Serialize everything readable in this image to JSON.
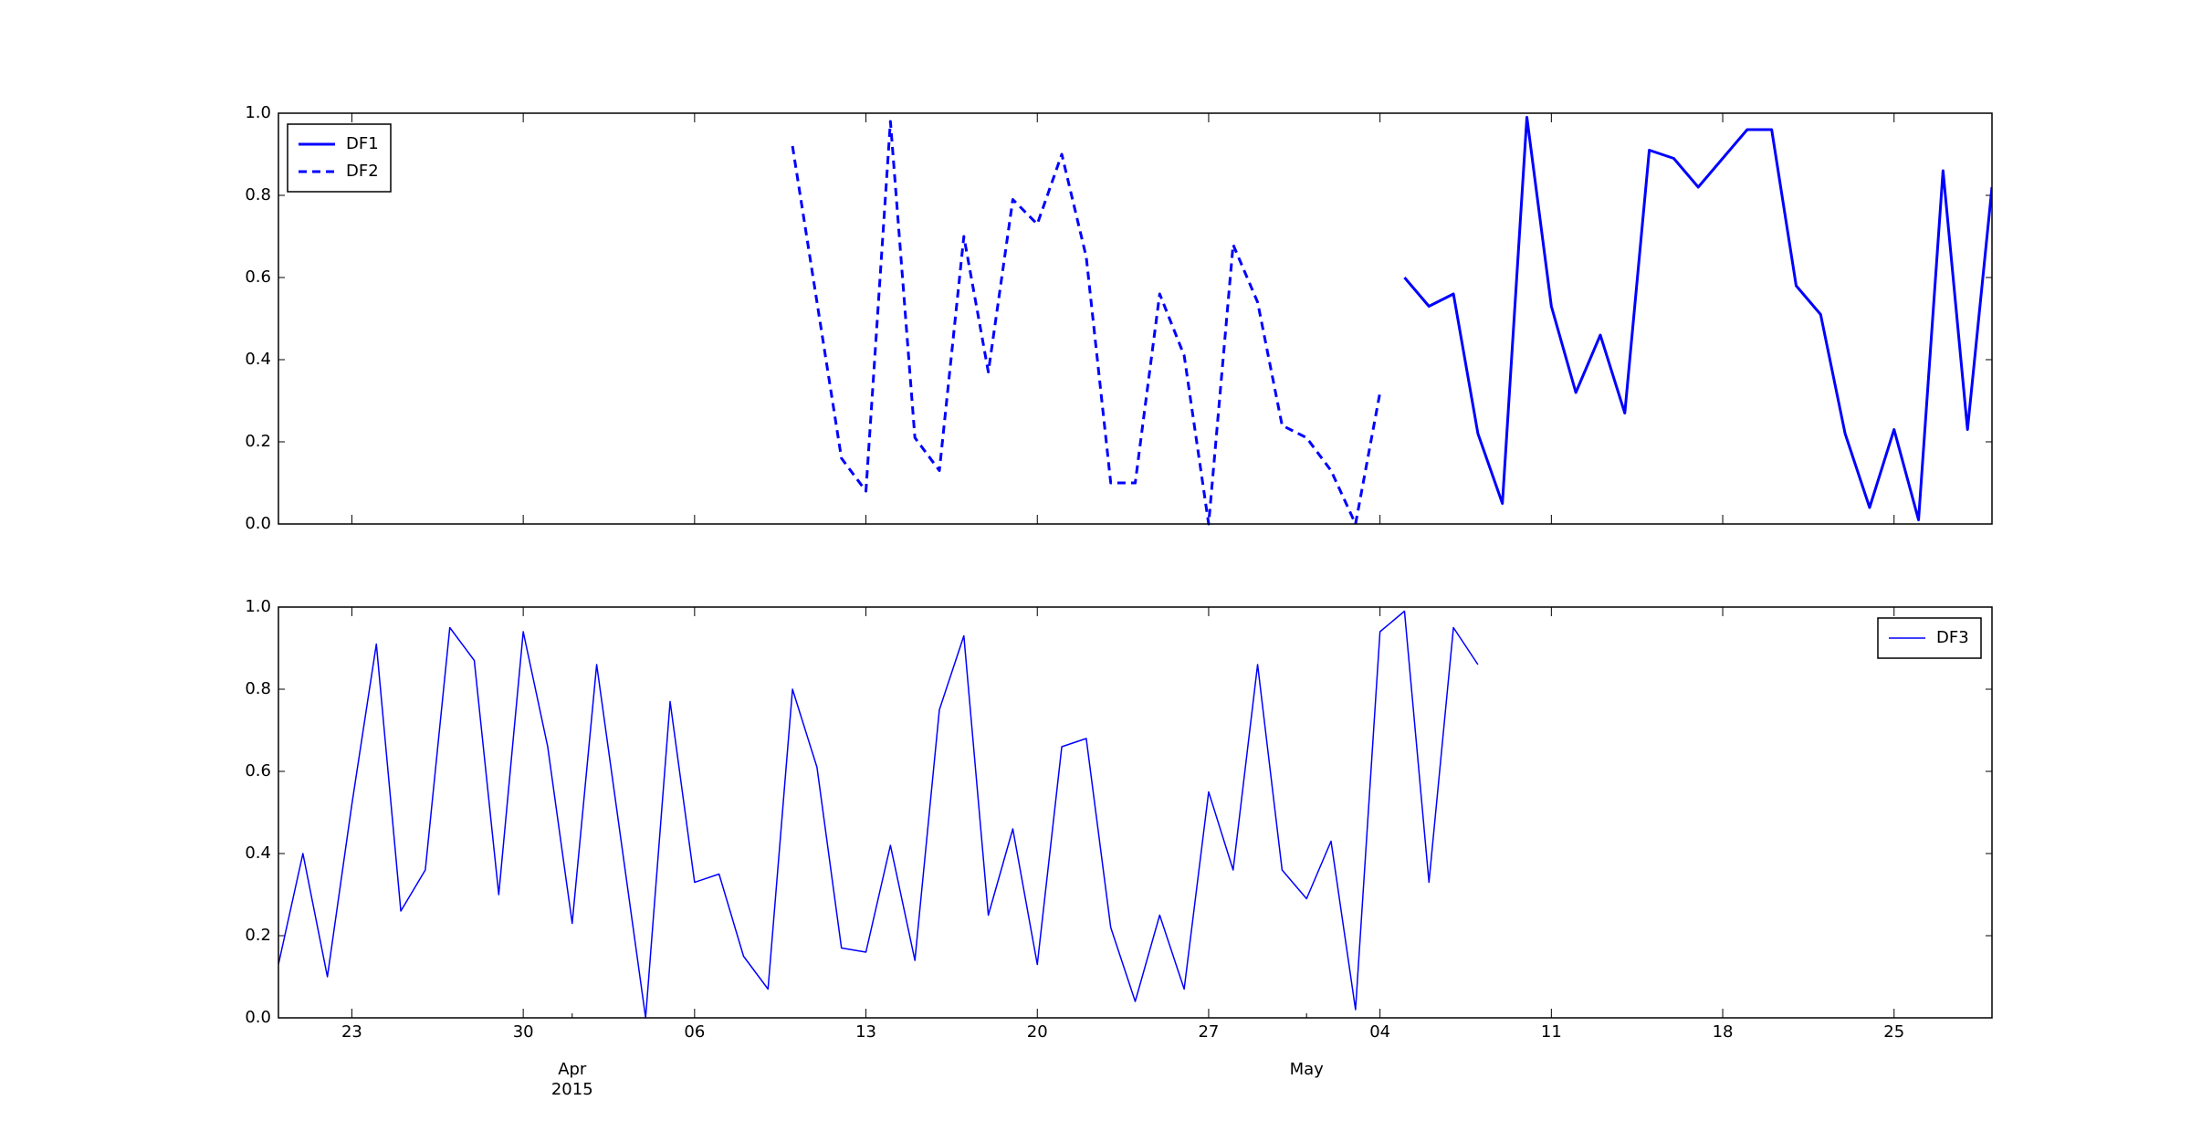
{
  "chart_data": [
    {
      "type": "line",
      "xlim": [
        "2015-03-20",
        "2015-05-29"
      ],
      "ylim": [
        0,
        1
      ],
      "xticks": [
        "2015-03-23",
        "2015-03-30",
        "2015-04-06",
        "2015-04-13",
        "2015-04-20",
        "2015-04-27",
        "2015-05-04",
        "2015-05-11",
        "2015-05-18",
        "2015-05-25"
      ],
      "yticks": [
        {
          "value": 0,
          "label": "0.0"
        },
        0.2,
        0.4,
        0.6,
        0.8,
        {
          "value": 1,
          "label": "1.0"
        }
      ],
      "legend": "upper left",
      "series": [
        {
          "name": "DF1",
          "color": "#0000ff",
          "linestyle": "solid",
          "linewidth": 2,
          "x": [
            "2015-05-05",
            "2015-05-06",
            "2015-05-07",
            "2015-05-08",
            "2015-05-09",
            "2015-05-10",
            "2015-05-11",
            "2015-05-12",
            "2015-05-13",
            "2015-05-14",
            "2015-05-15",
            "2015-05-16",
            "2015-05-17",
            "2015-05-18",
            "2015-05-19",
            "2015-05-20",
            "2015-05-21",
            "2015-05-22",
            "2015-05-23",
            "2015-05-24",
            "2015-05-25",
            "2015-05-26",
            "2015-05-27",
            "2015-05-28",
            "2015-05-29"
          ],
          "values": [
            0.6,
            0.53,
            0.56,
            0.22,
            0.05,
            0.99,
            0.53,
            0.32,
            0.46,
            0.27,
            0.91,
            0.89,
            0.82,
            0.89,
            0.96,
            0.96,
            0.58,
            0.51,
            0.22,
            0.04,
            0.23,
            0.01,
            0.86,
            0.23,
            0.82
          ]
        },
        {
          "name": "DF2",
          "color": "#0000ff",
          "linestyle": "dashed",
          "linewidth": 2,
          "x": [
            "2015-04-10",
            "2015-04-11",
            "2015-04-12",
            "2015-04-13",
            "2015-04-14",
            "2015-04-15",
            "2015-04-16",
            "2015-04-17",
            "2015-04-18",
            "2015-04-19",
            "2015-04-20",
            "2015-04-21",
            "2015-04-22",
            "2015-04-23",
            "2015-04-24",
            "2015-04-25",
            "2015-04-26",
            "2015-04-27",
            "2015-04-28",
            "2015-04-29",
            "2015-04-30",
            "2015-05-01",
            "2015-05-02",
            "2015-05-03",
            "2015-05-04"
          ],
          "values": [
            0.92,
            0.54,
            0.16,
            0.08,
            0.98,
            0.21,
            0.13,
            0.7,
            0.37,
            0.79,
            0.73,
            0.9,
            0.65,
            0.1,
            0.1,
            0.56,
            0.41,
            0.0,
            0.68,
            0.54,
            0.24,
            0.21,
            0.13,
            0.0,
            0.32
          ]
        }
      ]
    },
    {
      "type": "line",
      "xlim": [
        "2015-03-20",
        "2015-05-29"
      ],
      "ylim": [
        0,
        1
      ],
      "xticks": [
        {
          "value": "2015-03-23",
          "label": "23"
        },
        {
          "value": "2015-03-30",
          "label": "30"
        },
        {
          "value": "2015-04-06",
          "label": "06"
        },
        {
          "value": "2015-04-13",
          "label": "13"
        },
        {
          "value": "2015-04-20",
          "label": "20"
        },
        {
          "value": "2015-04-27",
          "label": "27"
        },
        {
          "value": "2015-05-04",
          "label": "04"
        },
        {
          "value": "2015-05-11",
          "label": "11"
        },
        {
          "value": "2015-05-18",
          "label": "18"
        },
        {
          "value": "2015-05-25",
          "label": "25"
        }
      ],
      "month_ticks": [
        {
          "value": "2015-04-01",
          "label": "Apr",
          "year": "2015"
        },
        {
          "value": "2015-05-01",
          "label": "May"
        }
      ],
      "yticks": [
        {
          "value": 0,
          "label": "0.0"
        },
        0.2,
        0.4,
        0.6,
        0.8,
        {
          "value": 1,
          "label": "1.0"
        }
      ],
      "legend": "upper right",
      "series": [
        {
          "name": "DF3",
          "color": "#0000ff",
          "linestyle": "solid",
          "linewidth": 1,
          "x": [
            "2015-03-20",
            "2015-03-21",
            "2015-03-22",
            "2015-03-23",
            "2015-03-24",
            "2015-03-25",
            "2015-03-26",
            "2015-03-27",
            "2015-03-28",
            "2015-03-29",
            "2015-03-30",
            "2015-03-31",
            "2015-04-01",
            "2015-04-02",
            "2015-04-03",
            "2015-04-04",
            "2015-04-05",
            "2015-04-06",
            "2015-04-07",
            "2015-04-08",
            "2015-04-09",
            "2015-04-10",
            "2015-04-11",
            "2015-04-12",
            "2015-04-13",
            "2015-04-14",
            "2015-04-15",
            "2015-04-16",
            "2015-04-17",
            "2015-04-18",
            "2015-04-19",
            "2015-04-20",
            "2015-04-21",
            "2015-04-22",
            "2015-04-23",
            "2015-04-24",
            "2015-04-25",
            "2015-04-26",
            "2015-04-27",
            "2015-04-28",
            "2015-04-29",
            "2015-04-30",
            "2015-05-01",
            "2015-05-02",
            "2015-05-03",
            "2015-05-04",
            "2015-05-05",
            "2015-05-06",
            "2015-05-07",
            "2015-05-08"
          ],
          "values": [
            0.13,
            0.4,
            0.1,
            0.52,
            0.91,
            0.26,
            0.36,
            0.95,
            0.87,
            0.3,
            0.94,
            0.66,
            0.23,
            0.86,
            0.43,
            0.0,
            0.77,
            0.33,
            0.35,
            0.15,
            0.07,
            0.8,
            0.61,
            0.17,
            0.16,
            0.42,
            0.14,
            0.75,
            0.93,
            0.25,
            0.46,
            0.13,
            0.66,
            0.68,
            0.22,
            0.04,
            0.25,
            0.07,
            0.55,
            0.36,
            0.86,
            0.36,
            0.29,
            0.43,
            0.02,
            0.94,
            0.99,
            0.33,
            0.95,
            0.86
          ]
        }
      ]
    }
  ]
}
